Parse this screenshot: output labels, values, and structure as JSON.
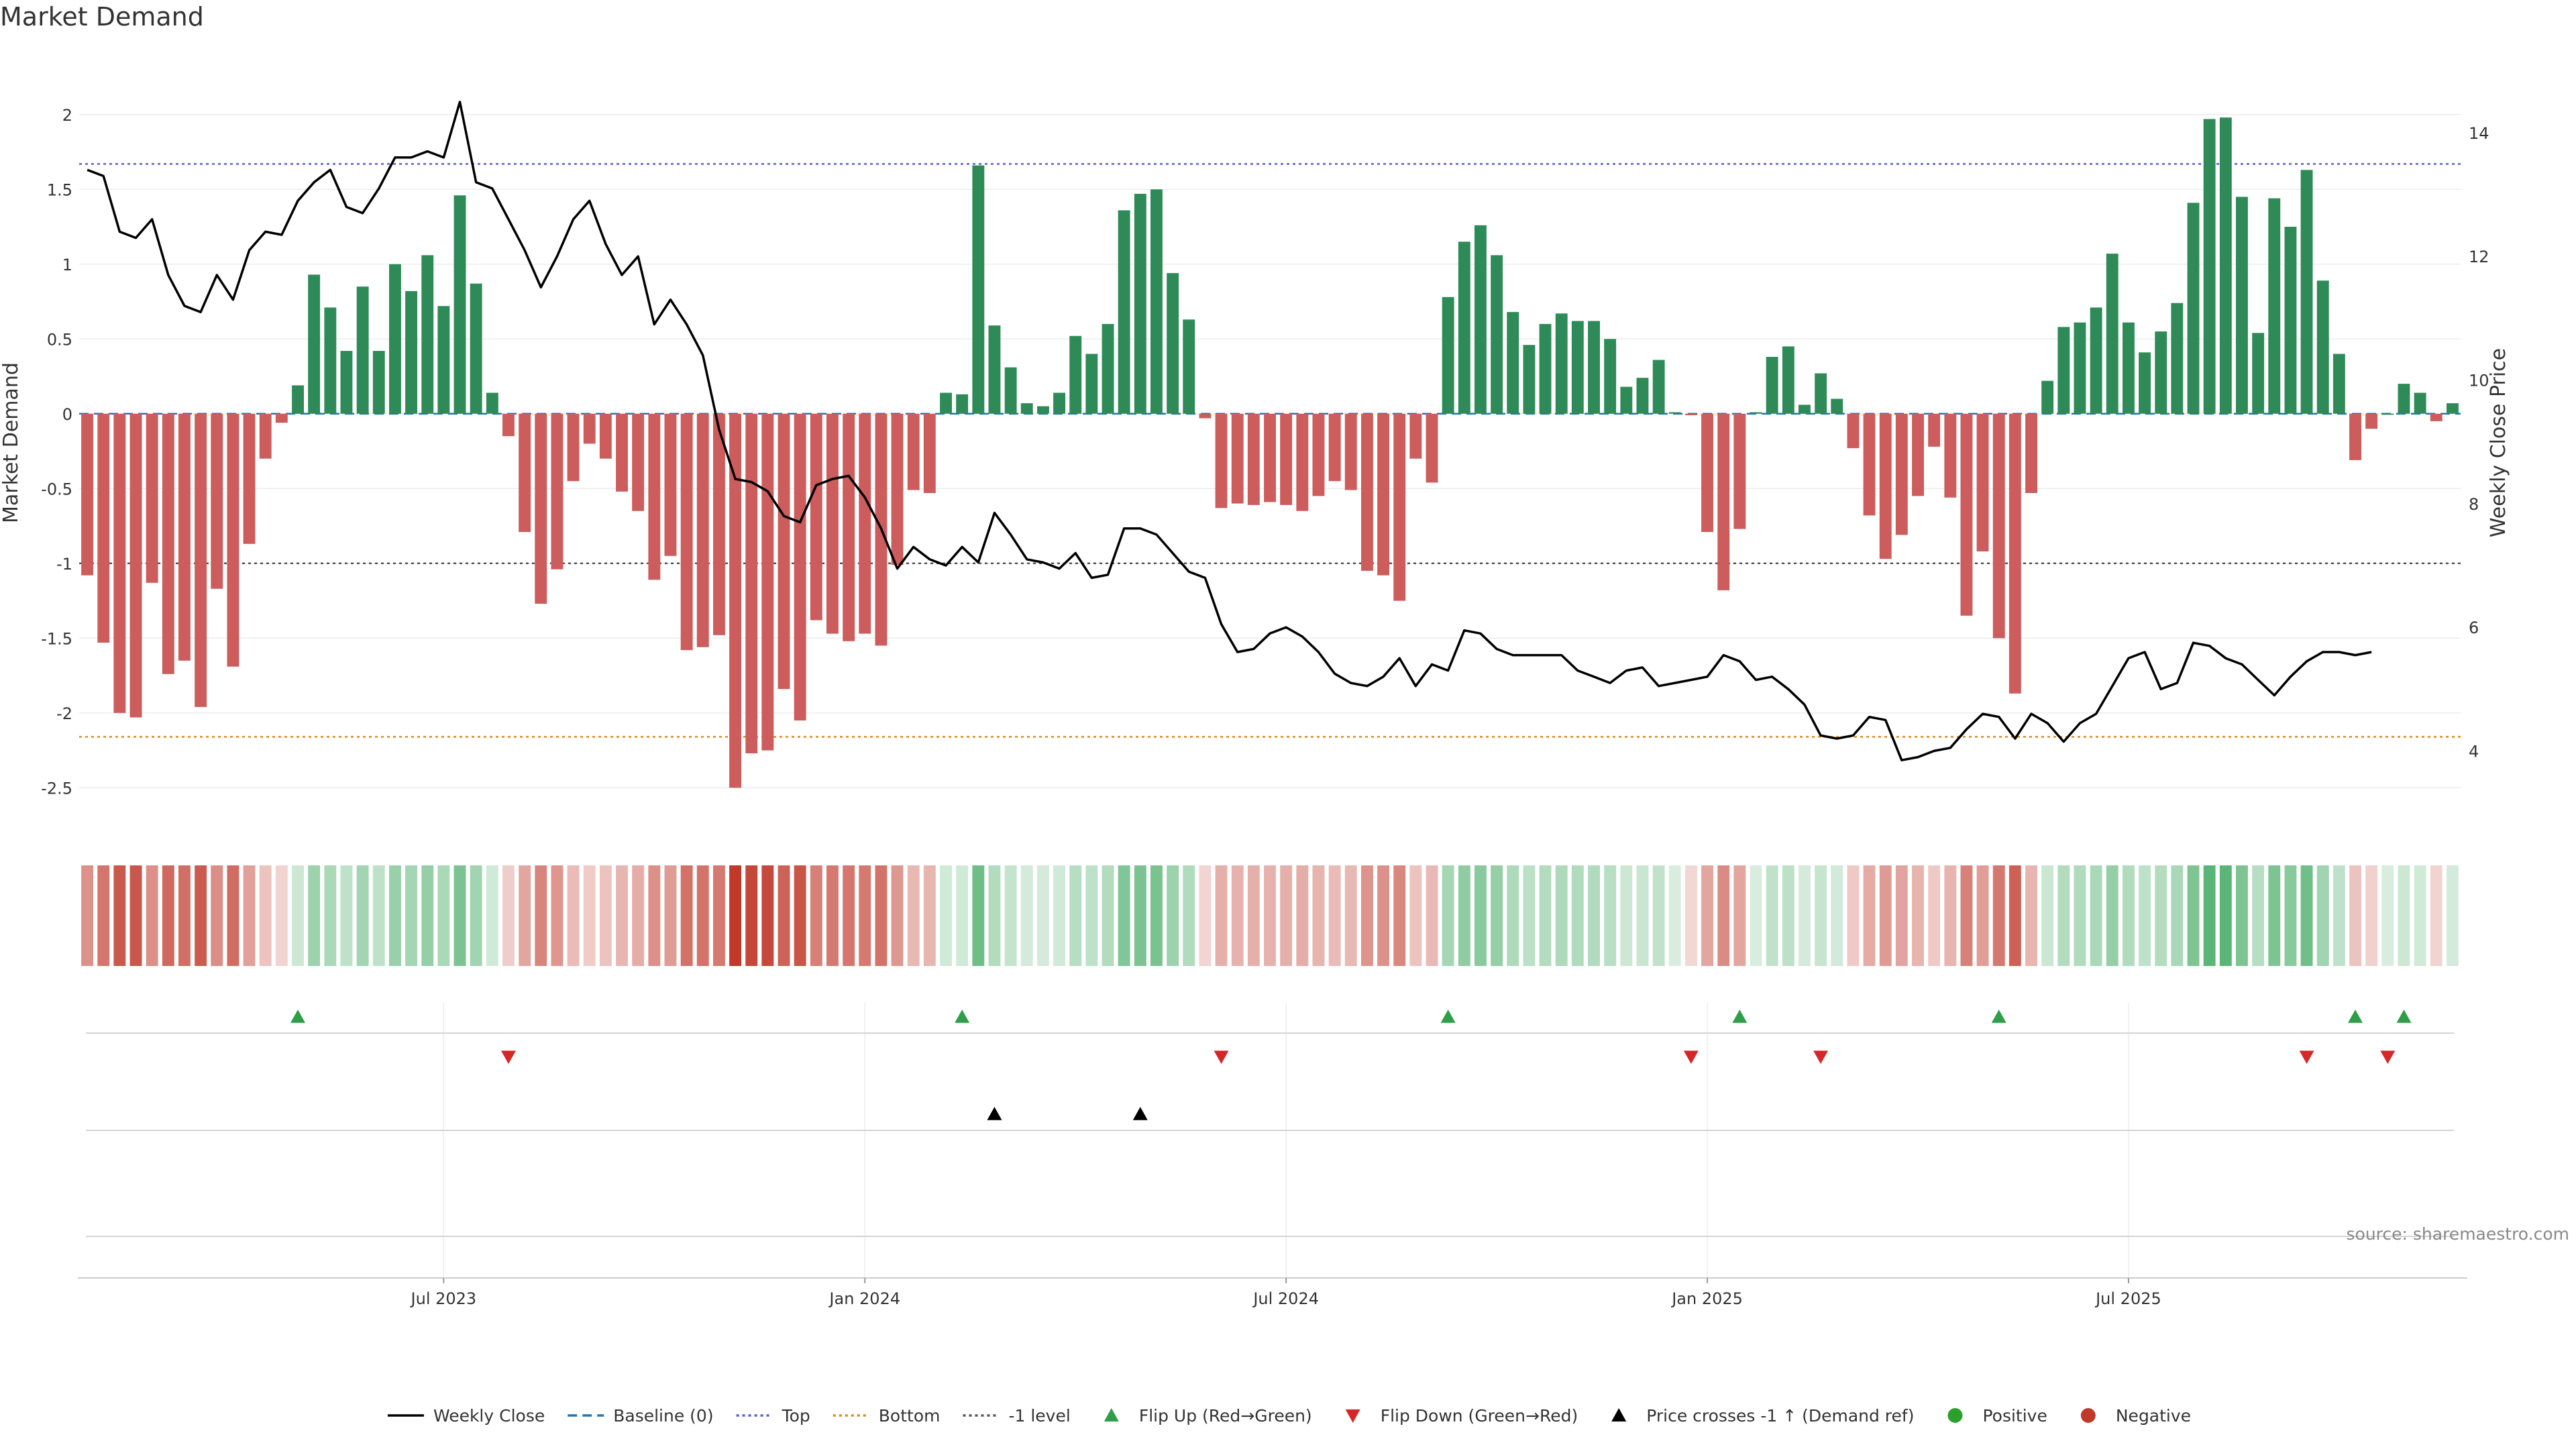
{
  "chart_data": {
    "type": "bar",
    "title": "Market Demand",
    "ylabel": "Market Demand",
    "ylabel_right": "Weekly Close Price",
    "ylim": [
      -2.75,
      2.25
    ],
    "ylim_right": [
      2.8,
      14.9
    ],
    "y_ticks": [
      2,
      1.5,
      1,
      0.5,
      0,
      -0.5,
      -1,
      -1.5,
      -2,
      -2.5
    ],
    "y_ticks_right": [
      14,
      12,
      10,
      8,
      6,
      4
    ],
    "levels": {
      "top": 1.67,
      "bottom": -2.16,
      "minus_one": -1.0,
      "baseline": 0
    },
    "x_ticks": [
      {
        "label": "Jul 2023",
        "week": 22
      },
      {
        "label": "Jan 2024",
        "week": 48
      },
      {
        "label": "Jul 2024",
        "week": 74
      },
      {
        "label": "Jan 2025",
        "week": 100
      },
      {
        "label": "Jul 2025",
        "week": 126
      }
    ],
    "demand": [
      -1.08,
      -1.53,
      -2.0,
      -2.03,
      -1.13,
      -1.74,
      -1.65,
      -1.96,
      -1.17,
      -1.69,
      -0.87,
      -0.3,
      -0.06,
      0.19,
      0.93,
      0.71,
      0.42,
      0.85,
      0.42,
      1.0,
      0.82,
      1.06,
      0.72,
      1.46,
      0.87,
      0.14,
      -0.15,
      -0.79,
      -1.27,
      -1.04,
      -0.45,
      -0.2,
      -0.3,
      -0.52,
      -0.65,
      -1.11,
      -0.95,
      -1.58,
      -1.56,
      -1.48,
      -2.5,
      -2.27,
      -2.25,
      -1.84,
      -2.05,
      -1.38,
      -1.47,
      -1.52,
      -1.47,
      -1.55,
      -1.01,
      -0.51,
      -0.53,
      0.14,
      0.13,
      1.66,
      0.59,
      0.31,
      0.07,
      0.05,
      0.14,
      0.52,
      0.4,
      0.6,
      1.36,
      1.47,
      1.5,
      0.94,
      0.63,
      -0.03,
      -0.63,
      -0.6,
      -0.61,
      -0.59,
      -0.61,
      -0.65,
      -0.55,
      -0.45,
      -0.51,
      -1.05,
      -1.08,
      -1.25,
      -0.3,
      -0.46,
      0.78,
      1.15,
      1.26,
      1.06,
      0.68,
      0.46,
      0.6,
      0.67,
      0.62,
      0.62,
      0.5,
      0.18,
      0.24,
      0.36,
      0.01,
      -0.01,
      -0.79,
      -1.18,
      -0.77,
      0.01,
      0.38,
      0.45,
      0.06,
      0.27,
      0.1,
      -0.23,
      -0.68,
      -0.97,
      -0.81,
      -0.55,
      -0.22,
      -0.56,
      -1.35,
      -0.92,
      -1.5,
      -1.87,
      -0.53,
      0.22,
      0.58,
      0.61,
      0.71,
      1.07,
      0.61,
      0.41,
      0.55,
      0.74,
      1.41,
      1.97,
      1.98,
      1.45,
      0.54,
      1.44,
      1.25,
      1.63,
      0.89,
      0.4,
      -0.31,
      -0.1,
      0.0,
      0.2,
      0.14,
      -0.05,
      0.07
    ],
    "weekly_close": [
      13.4,
      13.3,
      12.4,
      12.3,
      12.6,
      11.7,
      11.2,
      11.1,
      11.7,
      11.3,
      12.1,
      12.4,
      12.35,
      12.9,
      13.2,
      13.4,
      12.8,
      12.7,
      13.1,
      13.6,
      13.6,
      13.7,
      13.6,
      14.5,
      13.2,
      13.1,
      12.6,
      12.1,
      11.5,
      12.0,
      12.6,
      12.9,
      12.2,
      11.7,
      12.0,
      10.9,
      11.3,
      10.9,
      10.4,
      9.2,
      8.4,
      8.35,
      8.2,
      7.8,
      7.7,
      8.3,
      8.4,
      8.45,
      8.1,
      7.6,
      6.95,
      7.3,
      7.1,
      7.0,
      7.3,
      7.05,
      7.85,
      7.5,
      7.1,
      7.05,
      6.95,
      7.2,
      6.8,
      6.85,
      7.6,
      7.6,
      7.5,
      7.2,
      6.9,
      6.8,
      6.05,
      5.6,
      5.65,
      5.9,
      6.0,
      5.85,
      5.6,
      5.25,
      5.1,
      5.05,
      5.2,
      5.5,
      5.05,
      5.4,
      5.3,
      5.95,
      5.9,
      5.65,
      5.55,
      5.55,
      5.55,
      5.55,
      5.3,
      5.2,
      5.1,
      5.3,
      5.35,
      5.05,
      5.1,
      5.15,
      5.2,
      5.55,
      5.45,
      5.15,
      5.2,
      5.0,
      4.75,
      4.25,
      4.2,
      4.25,
      4.55,
      4.5,
      3.85,
      3.9,
      4.0,
      4.05,
      4.35,
      4.6,
      4.55,
      4.2,
      4.6,
      4.45,
      4.15,
      4.45,
      4.6,
      5.05,
      5.5,
      5.6,
      5.0,
      5.1,
      5.75,
      5.7,
      5.5,
      5.4,
      5.15,
      4.9,
      5.2,
      5.45,
      5.6,
      5.6,
      5.55,
      5.6
    ],
    "flip_up_weeks": [
      13,
      54,
      84,
      102,
      118,
      140,
      143
    ],
    "flip_down_weeks": [
      26,
      70,
      99,
      107,
      137,
      142
    ],
    "price_cross_weeks": [
      56,
      65
    ],
    "legend": [
      {
        "label": "Weekly Close",
        "kind": "line",
        "color": "#000000",
        "dash": "none"
      },
      {
        "label": "Baseline (0)",
        "kind": "line",
        "color": "#1f77b4",
        "dash": "14,8"
      },
      {
        "label": "Top",
        "kind": "line",
        "color": "#5b5bd6",
        "dash": "4,5"
      },
      {
        "label": "Bottom",
        "kind": "line",
        "color": "#e08a1e",
        "dash": "4,5"
      },
      {
        "label": "-1 level",
        "kind": "line",
        "color": "#555555",
        "dash": "4,5"
      },
      {
        "label": "Flip Up (Red→Green)",
        "kind": "tri-up",
        "color": "#2e9e48"
      },
      {
        "label": "Flip Down (Green→Red)",
        "kind": "tri-down",
        "color": "#d62728"
      },
      {
        "label": "Price crosses -1 ↑ (Demand ref)",
        "kind": "tri-up",
        "color": "#000000"
      },
      {
        "label": "Positive",
        "kind": "dot",
        "color": "#2ca02c"
      },
      {
        "label": "Negative",
        "kind": "dot",
        "color": "#c0392b"
      }
    ],
    "source": "source: sharemaestro.com"
  },
  "colors": {
    "positive": "#2e8b57",
    "negative": "#cd5c5c",
    "heat_positive": "#3aa65a",
    "heat_negative": "#c0392b",
    "flip_up": "#2e9e48",
    "flip_down": "#d62728"
  }
}
